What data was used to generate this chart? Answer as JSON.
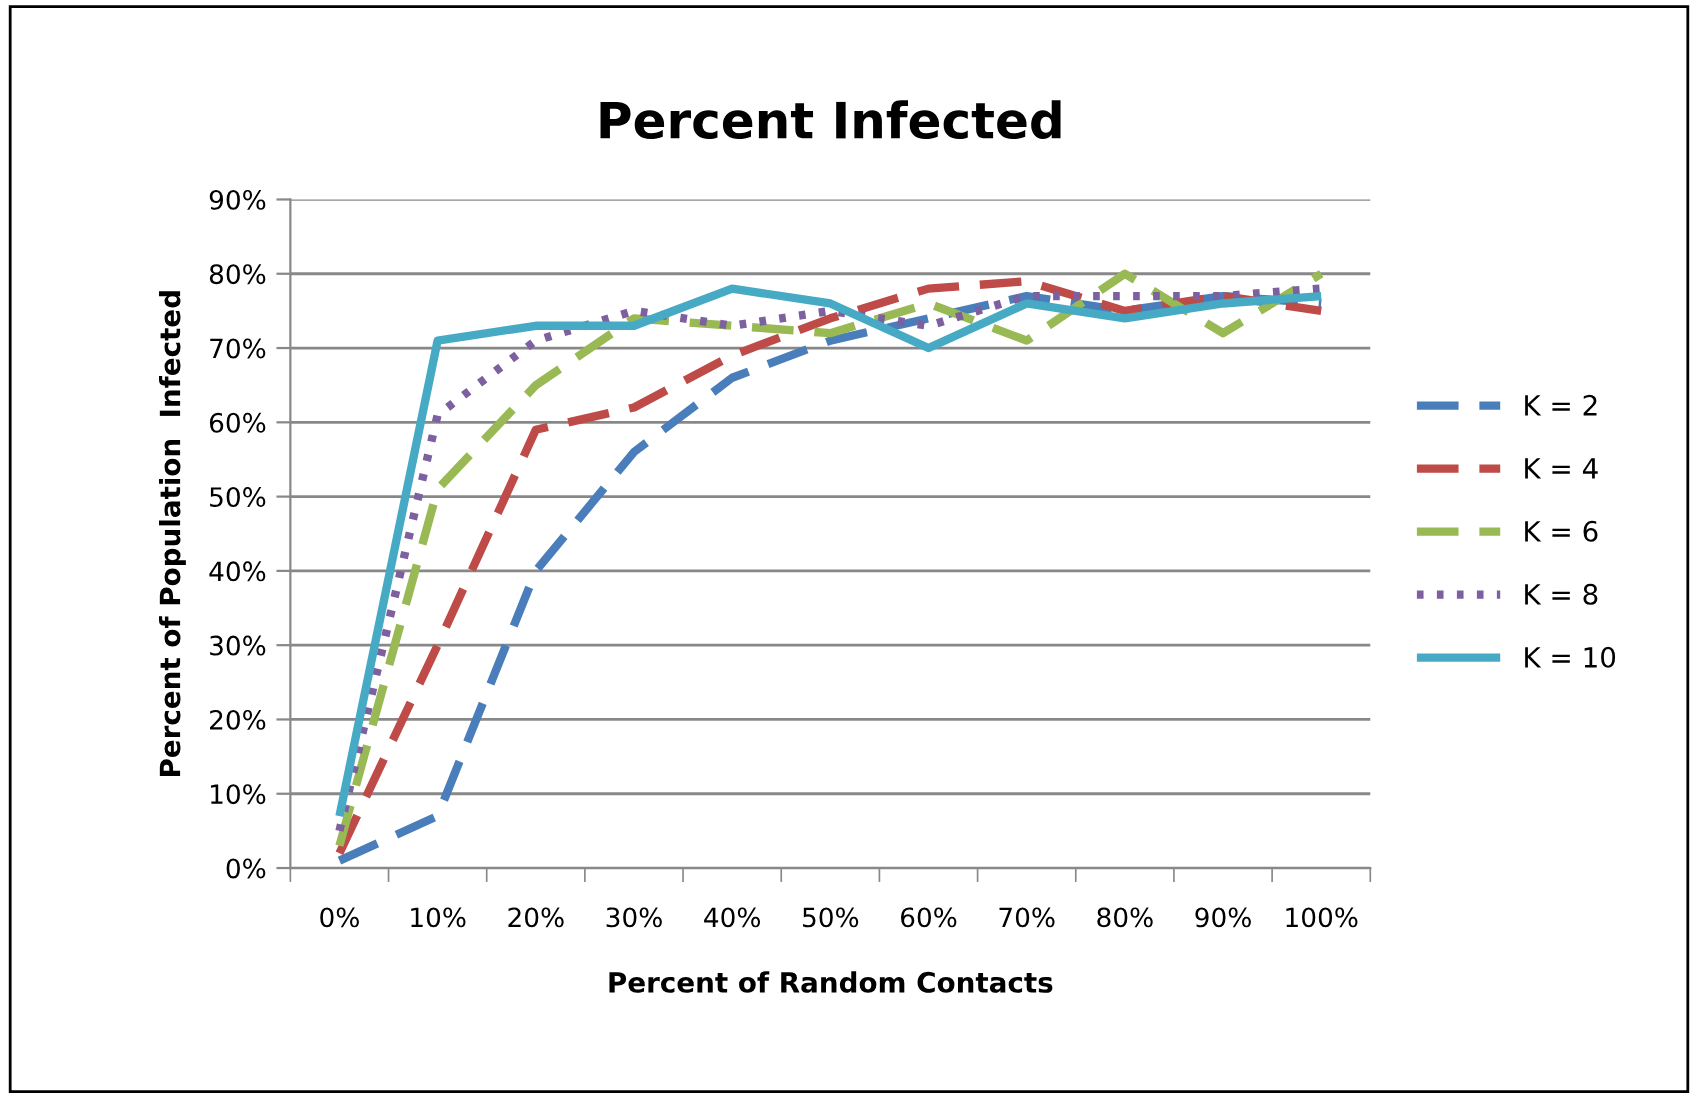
{
  "chart_data": {
    "type": "line",
    "title": "Percent Infected",
    "xlabel": "Percent of Random Contacts",
    "ylabel": "Percent of Population  Infected",
    "categories": [
      "0%",
      "10%",
      "20%",
      "30%",
      "40%",
      "50%",
      "60%",
      "70%",
      "80%",
      "90%",
      "100%"
    ],
    "ylim": [
      0,
      90
    ],
    "yticks": [
      {
        "value": 0,
        "label": "0%"
      },
      {
        "value": 10,
        "label": "10%"
      },
      {
        "value": 20,
        "label": "20%"
      },
      {
        "value": 30,
        "label": "30%"
      },
      {
        "value": 40,
        "label": "40%"
      },
      {
        "value": 50,
        "label": "50%"
      },
      {
        "value": 60,
        "label": "60%"
      },
      {
        "value": 70,
        "label": "70%"
      },
      {
        "value": 80,
        "label": "80%"
      },
      {
        "value": 90,
        "label": "90%"
      }
    ],
    "grid": "y",
    "legend": "right",
    "marker": "none",
    "series": [
      {
        "name": "K = 2",
        "color": "#4a7ebb",
        "line_style": "dashed",
        "values": [
          1,
          7,
          40,
          56,
          66,
          71,
          74,
          77,
          75,
          77,
          76
        ]
      },
      {
        "name": "K = 4",
        "color": "#be4b48",
        "line_style": "dashed",
        "values": [
          2,
          30,
          59,
          62,
          69,
          74,
          78,
          79,
          75,
          77,
          75
        ]
      },
      {
        "name": "K = 6",
        "color": "#98b954",
        "line_style": "dashed",
        "values": [
          3,
          51,
          65,
          74,
          73,
          72,
          76,
          71,
          80,
          72,
          80
        ]
      },
      {
        "name": "K = 8",
        "color": "#7d60a0",
        "line_style": "dotted",
        "values": [
          5,
          61,
          71,
          75,
          73,
          75,
          73,
          77,
          77,
          77,
          78
        ]
      },
      {
        "name": "K = 10",
        "color": "#46aac5",
        "line_style": "solid",
        "values": [
          7,
          71,
          73,
          73,
          78,
          76,
          70,
          76,
          74,
          76,
          77
        ]
      }
    ]
  }
}
